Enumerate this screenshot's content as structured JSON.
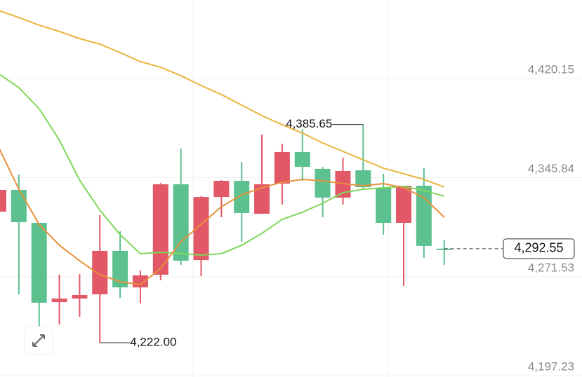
{
  "chart_data": {
    "type": "candlestick",
    "candles": {
      "open": [
        4336.6,
        4312.4,
        4252.0,
        4255.1,
        4257.8,
        4290.9,
        4263.5,
        4272.5,
        4340.8,
        4283.5,
        4331.3,
        4343.4,
        4319.3,
        4340.8,
        4365.0,
        4353.9,
        4330.8,
        4350.8,
        4338.7,
        4311.9,
        4339.7,
        4294.6,
        4292.2
      ],
      "high": [
        4336.6,
        4348.1,
        4311.9,
        4273.0,
        4273.5,
        4317.7,
        4305.6,
        4276.2,
        4341.8,
        4367.6,
        4331.9,
        4343.9,
        4357.6,
        4378.1,
        4371.3,
        4382.0,
        4353.9,
        4360.8,
        4385.65,
        4348.7,
        4339.7,
        4352.9,
        4298.8
      ],
      "low": [
        4320.3,
        4258.3,
        4232.0,
        4235.7,
        4241.5,
        4222.0,
        4255.7,
        4251.5,
        4268.8,
        4280.4,
        4272.0,
        4316.1,
        4297.7,
        4318.7,
        4325.6,
        4343.4,
        4316.1,
        4325.6,
        4337.1,
        4303.0,
        4264.6,
        4285.6,
        4280.4
      ],
      "close": [
        4320.3,
        4336.6,
        4311.9,
        4252.5,
        4255.1,
        4258.3,
        4290.9,
        4263.5,
        4273.0,
        4340.8,
        4284.0,
        4331.3,
        4343.4,
        4318.7,
        4341.3,
        4365.0,
        4352.4,
        4330.8,
        4351.3,
        4338.2,
        4311.9,
        4339.7,
        4292.55
      ]
    },
    "up_color": "#5cc08f",
    "down_color": "#e25867",
    "series": [
      {
        "color": "#e9b43c",
        "values": [
          4471.1,
          4465.9,
          4460.1,
          4455.4,
          4450.1,
          4445.9,
          4439.6,
          4432.8,
          4428.6,
          4422.2,
          4414.9,
          4408.1,
          4400.2,
          4392.3,
          4385.5,
          4379.2,
          4371.8,
          4365.5,
          4359.2,
          4352.9,
          4348.7,
          4344.5,
          4338.7
        ]
      },
      {
        "color": "#7fd85a",
        "values": [
          4423.8,
          4413.3,
          4397.5,
          4373.9,
          4343.9,
          4321.4,
          4303.0,
          4288.8,
          4289.8,
          4288.8,
          4287.7,
          4288.8,
          4295.1,
          4304.0,
          4314.5,
          4319.8,
          4326.6,
          4334.5,
          4337.1,
          4338.2,
          4339.2,
          4336.1,
          4331.9
        ]
      },
      {
        "color": "#e8923c",
        "values": [
          4368.6,
          4337.1,
          4310.8,
          4295.1,
          4283.5,
          4273.0,
          4267.7,
          4265.6,
          4277.7,
          4297.7,
          4310.8,
          4324.0,
          4332.9,
          4338.2,
          4342.4,
          4344.5,
          4343.4,
          4341.3,
          4339.7,
          4341.3,
          4338.2,
          4330.8,
          4316.1
        ]
      }
    ],
    "ylim": [
      4196.3,
      4479.0
    ],
    "yticks": [
      {
        "value": 4197.23,
        "label": "4,197.23"
      },
      {
        "value": 4271.53,
        "label": "4,271.53"
      },
      {
        "value": 4345.84,
        "label": "4,345.84"
      },
      {
        "value": 4420.15,
        "label": "4,420.15"
      }
    ],
    "grid": true,
    "high_label": {
      "value": 4385.65,
      "label": "4,385.65"
    },
    "low_label": {
      "value": 4222.0,
      "label": "4,222.00"
    },
    "last_price": {
      "value": 4292.55,
      "label": "4,292.55"
    }
  }
}
